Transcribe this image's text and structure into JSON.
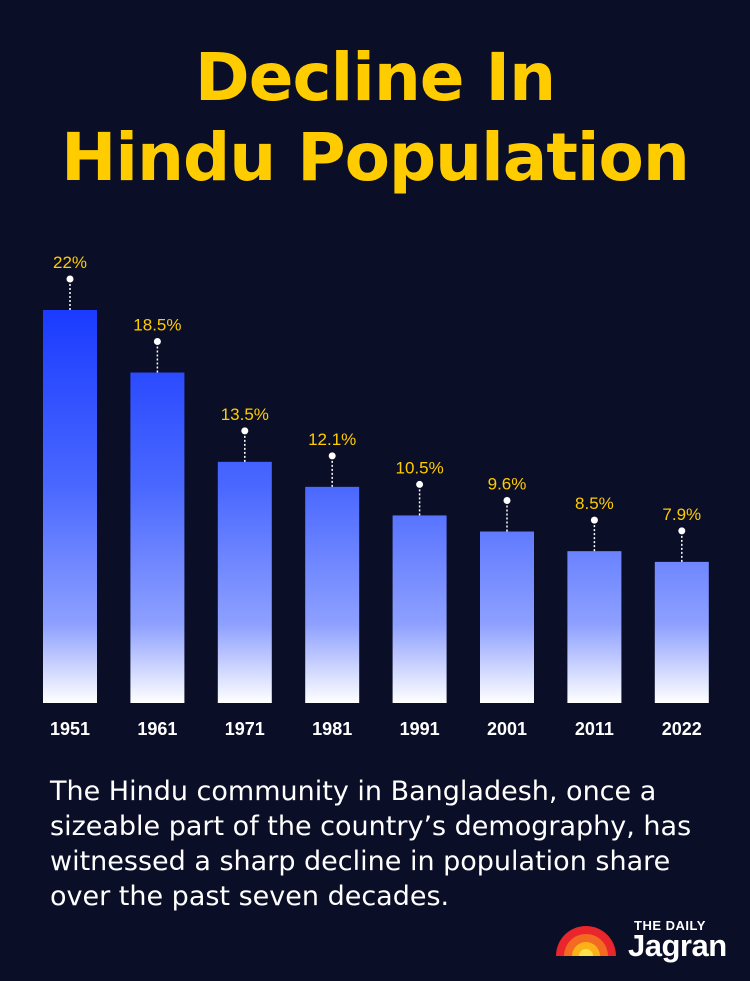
{
  "title_line1": "Decline In",
  "title_line2": "Hindu Population",
  "caption": "The Hindu community in Bangladesh, once a sizeable part of the country’s demography, has witnessed a sharp decline in population share over the past seven decades.",
  "brand": {
    "top": "THE DAILY",
    "main": "Jagran"
  },
  "colors": {
    "background": "#0b0e27",
    "title": "#ffcc00",
    "label": "#ffcc00",
    "bar_top": "#1a3bff",
    "bar_bottom": "#ffffff"
  },
  "chart_data": {
    "type": "bar",
    "title": "Decline In Hindu Population",
    "categories": [
      "1951",
      "1961",
      "1971",
      "1981",
      "1991",
      "2001",
      "2011",
      "2022"
    ],
    "values": [
      22,
      18.5,
      13.5,
      12.1,
      10.5,
      9.6,
      8.5,
      7.9
    ],
    "value_labels": [
      "22%",
      "18.5%",
      "13.5%",
      "12.1%",
      "10.5%",
      "9.6%",
      "8.5%",
      "7.9%"
    ],
    "unit": "%",
    "ylim": [
      0,
      22
    ],
    "grid": false,
    "legend": "none"
  }
}
